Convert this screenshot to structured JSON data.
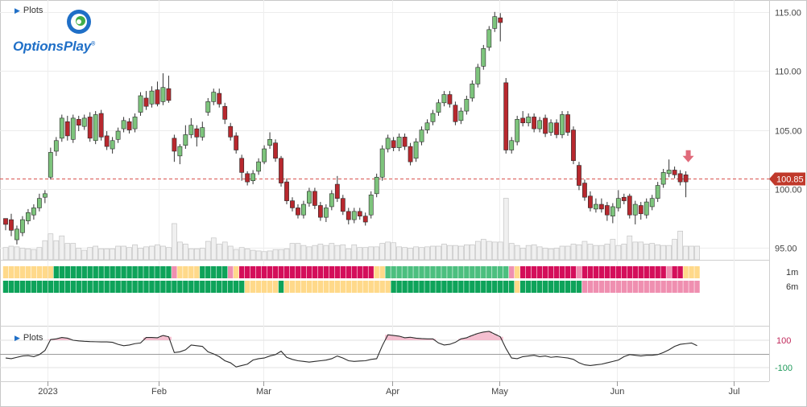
{
  "brand": {
    "name": "OptionsPlay",
    "mark": "®"
  },
  "plots_label": "Plots",
  "colors": {
    "up": "#7dc47c",
    "down": "#b8282e",
    "accent": "#1f6fc7",
    "current_price_bg": "#c0392b",
    "strong_green": "#0ea35a",
    "light_green": "#4cbf7f",
    "yellow": "#ffd98a",
    "pink": "#ef8fb0",
    "red": "#d40e5a"
  },
  "chart_data": {
    "type": "candlestick",
    "ylim": [
      94.0,
      115.6
    ],
    "y_ticks": [
      "115.00",
      "110.00",
      "105.00",
      "100.00",
      "95.00"
    ],
    "x_labels": [
      "2023",
      "Feb",
      "Mar",
      "Apr",
      "May",
      "Jun",
      "Jul"
    ],
    "current_price": "100.85",
    "candles": [
      [
        97.5,
        97.0,
        97.2,
        96.5
      ],
      [
        97.4,
        96.5,
        97.9,
        96.0
      ],
      [
        95.7,
        96.6,
        96.9,
        95.3
      ],
      [
        96.3,
        97.4,
        97.7,
        96.0
      ],
      [
        97.3,
        98.0,
        98.3,
        97.0
      ],
      [
        97.8,
        98.4,
        98.7,
        97.4
      ],
      [
        98.4,
        99.2,
        99.6,
        98.1
      ],
      [
        99.3,
        99.6,
        99.9,
        98.8
      ],
      [
        101.0,
        103.1,
        103.5,
        100.8
      ],
      [
        103.2,
        104.1,
        104.4,
        102.8
      ],
      [
        104.3,
        106.0,
        106.3,
        104.0
      ],
      [
        105.7,
        104.5,
        106.2,
        104.1
      ],
      [
        104.2,
        106.0,
        106.3,
        103.9
      ],
      [
        105.9,
        105.4,
        106.2,
        104.9
      ],
      [
        105.3,
        106.0,
        106.3,
        105.0
      ],
      [
        106.1,
        104.3,
        106.5,
        104.0
      ],
      [
        104.1,
        106.3,
        106.6,
        103.8
      ],
      [
        106.4,
        104.4,
        106.7,
        104.1
      ],
      [
        104.5,
        103.6,
        104.9,
        103.3
      ],
      [
        103.4,
        104.1,
        104.4,
        103.0
      ],
      [
        104.2,
        104.9,
        105.2,
        103.9
      ],
      [
        105.1,
        105.8,
        106.1,
        104.8
      ],
      [
        105.7,
        105.0,
        106.0,
        104.7
      ],
      [
        105.1,
        106.1,
        106.4,
        104.8
      ],
      [
        106.5,
        107.9,
        108.2,
        106.2
      ],
      [
        107.7,
        107.0,
        108.3,
        106.7
      ],
      [
        107.2,
        108.3,
        108.7,
        106.9
      ],
      [
        108.4,
        107.2,
        109.1,
        107.0
      ],
      [
        107.4,
        108.6,
        109.8,
        107.1
      ],
      [
        108.5,
        107.5,
        109.6,
        107.3
      ],
      [
        104.3,
        103.2,
        104.6,
        102.3
      ],
      [
        102.8,
        103.6,
        103.8,
        102.1
      ],
      [
        103.7,
        104.6,
        105.4,
        103.4
      ],
      [
        104.6,
        105.4,
        106.0,
        104.3
      ],
      [
        105.1,
        104.4,
        105.4,
        103.6
      ],
      [
        104.4,
        105.2,
        105.7,
        104.1
      ],
      [
        106.5,
        107.4,
        107.7,
        106.2
      ],
      [
        107.4,
        108.2,
        108.5,
        107.1
      ],
      [
        108.1,
        107.2,
        108.5,
        106.9
      ],
      [
        107.0,
        105.9,
        107.3,
        105.5
      ],
      [
        105.3,
        104.4,
        105.6,
        104.1
      ],
      [
        104.5,
        103.3,
        104.8,
        103.0
      ],
      [
        102.6,
        101.4,
        102.9,
        100.7
      ],
      [
        101.3,
        100.6,
        101.5,
        100.3
      ],
      [
        100.7,
        101.3,
        101.6,
        100.4
      ],
      [
        101.5,
        102.3,
        102.6,
        101.2
      ],
      [
        102.3,
        103.4,
        103.7,
        102.1
      ],
      [
        103.7,
        104.2,
        104.8,
        103.4
      ],
      [
        103.9,
        102.6,
        104.2,
        102.3
      ],
      [
        102.6,
        100.5,
        102.8,
        100.2
      ],
      [
        100.6,
        99.0,
        100.9,
        98.7
      ],
      [
        99.0,
        98.4,
        99.3,
        98.1
      ],
      [
        98.4,
        97.8,
        98.7,
        97.5
      ],
      [
        97.8,
        98.7,
        99.0,
        97.5
      ],
      [
        98.8,
        99.8,
        100.1,
        98.5
      ],
      [
        99.8,
        98.6,
        100.1,
        98.3
      ],
      [
        98.6,
        97.6,
        98.9,
        97.3
      ],
      [
        97.6,
        98.4,
        98.7,
        97.2
      ],
      [
        98.5,
        99.6,
        99.9,
        98.2
      ],
      [
        100.4,
        99.2,
        101.1,
        98.9
      ],
      [
        99.2,
        98.1,
        99.5,
        97.8
      ],
      [
        98.1,
        97.4,
        98.4,
        97.0
      ],
      [
        97.4,
        98.1,
        98.4,
        97.1
      ],
      [
        98.1,
        97.7,
        98.4,
        97.4
      ],
      [
        97.7,
        97.2,
        98.0,
        96.9
      ],
      [
        97.8,
        99.5,
        99.8,
        97.5
      ],
      [
        99.6,
        101.0,
        101.3,
        99.3
      ],
      [
        101.0,
        103.4,
        103.7,
        100.7
      ],
      [
        103.4,
        104.3,
        104.6,
        103.1
      ],
      [
        104.1,
        103.5,
        104.4,
        103.2
      ],
      [
        103.5,
        104.4,
        104.7,
        103.2
      ],
      [
        104.4,
        103.6,
        104.7,
        103.3
      ],
      [
        103.6,
        102.3,
        103.9,
        102.0
      ],
      [
        102.6,
        104.0,
        104.3,
        102.3
      ],
      [
        104.0,
        105.0,
        105.3,
        103.7
      ],
      [
        105.0,
        105.6,
        105.9,
        104.7
      ],
      [
        105.7,
        106.4,
        106.7,
        105.4
      ],
      [
        106.5,
        107.3,
        107.6,
        106.2
      ],
      [
        107.3,
        108.0,
        108.3,
        107.0
      ],
      [
        108.0,
        107.2,
        108.3,
        106.9
      ],
      [
        107.1,
        105.7,
        107.4,
        105.4
      ],
      [
        105.8,
        106.6,
        106.9,
        105.5
      ],
      [
        106.6,
        107.6,
        107.9,
        106.3
      ],
      [
        107.7,
        108.9,
        109.2,
        107.4
      ],
      [
        108.9,
        110.3,
        110.6,
        108.6
      ],
      [
        110.4,
        111.9,
        112.2,
        110.1
      ],
      [
        112.0,
        113.5,
        113.8,
        111.7
      ],
      [
        113.6,
        114.6,
        115.0,
        113.3
      ],
      [
        114.5,
        114.1,
        114.9,
        112.5
      ],
      [
        109.0,
        103.3,
        109.4,
        103.0
      ],
      [
        103.3,
        104.1,
        104.4,
        103.0
      ],
      [
        104.0,
        105.9,
        106.2,
        103.7
      ],
      [
        106.0,
        105.6,
        106.6,
        105.3
      ],
      [
        105.6,
        106.1,
        106.4,
        105.3
      ],
      [
        106.1,
        105.1,
        106.4,
        104.8
      ],
      [
        105.1,
        105.8,
        106.1,
        104.8
      ],
      [
        106.0,
        104.7,
        106.3,
        104.4
      ],
      [
        104.8,
        105.6,
        105.9,
        104.5
      ],
      [
        105.6,
        104.6,
        105.9,
        104.3
      ],
      [
        104.6,
        106.3,
        106.6,
        104.3
      ],
      [
        106.3,
        104.8,
        106.6,
        104.5
      ],
      [
        105.0,
        102.4,
        105.3,
        102.1
      ],
      [
        102.0,
        100.3,
        102.3,
        99.9
      ],
      [
        100.5,
        99.3,
        100.8,
        99.0
      ],
      [
        99.4,
        98.4,
        99.8,
        98.1
      ],
      [
        98.3,
        98.7,
        99.2,
        98.0
      ],
      [
        98.7,
        98.3,
        99.2,
        98.0
      ],
      [
        98.6,
        97.8,
        98.9,
        97.3
      ],
      [
        97.7,
        98.5,
        98.8,
        97.1
      ],
      [
        98.4,
        99.2,
        99.9,
        98.1
      ],
      [
        99.3,
        99.0,
        99.6,
        98.7
      ],
      [
        99.4,
        97.8,
        99.6,
        97.5
      ],
      [
        97.8,
        98.7,
        99.0,
        97.0
      ],
      [
        98.6,
        97.9,
        98.9,
        97.4
      ],
      [
        97.8,
        98.9,
        99.2,
        97.5
      ],
      [
        98.5,
        99.2,
        99.5,
        98.2
      ],
      [
        99.2,
        100.3,
        100.6,
        98.9
      ],
      [
        100.4,
        101.4,
        101.7,
        100.1
      ],
      [
        101.3,
        101.6,
        102.5,
        101.0
      ],
      [
        101.6,
        101.2,
        101.9,
        100.9
      ],
      [
        101.3,
        100.6,
        101.6,
        100.3
      ],
      [
        101.2,
        100.6,
        101.5,
        99.3
      ]
    ],
    "volume": [
      0.18,
      0.2,
      0.19,
      0.17,
      0.16,
      0.15,
      0.18,
      0.28,
      0.38,
      0.28,
      0.35,
      0.24,
      0.24,
      0.17,
      0.14,
      0.18,
      0.2,
      0.16,
      0.16,
      0.16,
      0.2,
      0.2,
      0.18,
      0.22,
      0.17,
      0.19,
      0.2,
      0.22,
      0.2,
      0.18,
      0.53,
      0.26,
      0.23,
      0.16,
      0.16,
      0.17,
      0.27,
      0.32,
      0.23,
      0.26,
      0.2,
      0.15,
      0.18,
      0.16,
      0.14,
      0.13,
      0.12,
      0.13,
      0.15,
      0.15,
      0.16,
      0.24,
      0.24,
      0.21,
      0.19,
      0.21,
      0.23,
      0.21,
      0.24,
      0.21,
      0.22,
      0.16,
      0.22,
      0.18,
      0.18,
      0.19,
      0.19,
      0.24,
      0.26,
      0.25,
      0.19,
      0.18,
      0.17,
      0.19,
      0.18,
      0.19,
      0.2,
      0.2,
      0.23,
      0.21,
      0.21,
      0.2,
      0.22,
      0.22,
      0.27,
      0.3,
      0.27,
      0.26,
      0.26,
      0.9,
      0.24,
      0.21,
      0.17,
      0.21,
      0.22,
      0.19,
      0.17,
      0.16,
      0.17,
      0.2,
      0.2,
      0.23,
      0.22,
      0.27,
      0.23,
      0.21,
      0.21,
      0.23,
      0.3,
      0.21,
      0.23,
      0.35,
      0.26,
      0.26,
      0.23,
      0.24,
      0.22,
      0.21,
      0.21,
      0.3,
      0.42,
      0.2,
      0.2,
      0.2
    ],
    "strip_1m": [
      "Y",
      "Y",
      "Y",
      "Y",
      "Y",
      "Y",
      "Y",
      "Y",
      "Y",
      "G",
      "G",
      "G",
      "G",
      "G",
      "G",
      "G",
      "G",
      "G",
      "G",
      "G",
      "G",
      "G",
      "G",
      "G",
      "G",
      "G",
      "G",
      "G",
      "G",
      "G",
      "P",
      "Y",
      "Y",
      "Y",
      "Y",
      "G",
      "G",
      "G",
      "G",
      "G",
      "P",
      "Y",
      "R",
      "R",
      "R",
      "R",
      "R",
      "R",
      "R",
      "R",
      "R",
      "R",
      "R",
      "R",
      "R",
      "R",
      "R",
      "R",
      "R",
      "R",
      "R",
      "R",
      "R",
      "R",
      "R",
      "R",
      "Y",
      "Y",
      "L",
      "L",
      "L",
      "L",
      "L",
      "L",
      "L",
      "L",
      "L",
      "L",
      "L",
      "L",
      "L",
      "L",
      "L",
      "L",
      "L",
      "L",
      "L",
      "L",
      "L",
      "L",
      "P",
      "Y",
      "R",
      "R",
      "R",
      "R",
      "R",
      "R",
      "R",
      "R",
      "R",
      "R",
      "P",
      "R",
      "R",
      "R",
      "R",
      "R",
      "R",
      "R",
      "R",
      "R",
      "R",
      "R",
      "R",
      "R",
      "R",
      "R",
      "P",
      "R",
      "R",
      "Y",
      "Y",
      "Y"
    ],
    "strip_6m": [
      "G",
      "G",
      "G",
      "G",
      "G",
      "G",
      "G",
      "G",
      "G",
      "G",
      "G",
      "G",
      "G",
      "G",
      "G",
      "G",
      "G",
      "G",
      "G",
      "G",
      "G",
      "G",
      "G",
      "G",
      "G",
      "G",
      "G",
      "G",
      "G",
      "G",
      "G",
      "G",
      "G",
      "G",
      "G",
      "G",
      "G",
      "G",
      "G",
      "G",
      "G",
      "G",
      "G",
      "Y",
      "Y",
      "Y",
      "Y",
      "Y",
      "Y",
      "G",
      "Y",
      "Y",
      "Y",
      "Y",
      "Y",
      "Y",
      "Y",
      "Y",
      "Y",
      "Y",
      "Y",
      "Y",
      "Y",
      "Y",
      "Y",
      "Y",
      "Y",
      "Y",
      "Y",
      "G",
      "G",
      "G",
      "G",
      "G",
      "G",
      "G",
      "G",
      "G",
      "G",
      "G",
      "G",
      "G",
      "G",
      "G",
      "G",
      "G",
      "G",
      "G",
      "G",
      "G",
      "G",
      "Y",
      "G",
      "G",
      "G",
      "G",
      "G",
      "G",
      "G",
      "G",
      "G",
      "G",
      "G",
      "P",
      "P",
      "P",
      "P",
      "P",
      "P",
      "P",
      "P",
      "P",
      "P",
      "P",
      "P",
      "P",
      "P",
      "P",
      "P",
      "P",
      "P",
      "P",
      "P",
      "P"
    ],
    "strip_labels": [
      "1m",
      "6m"
    ],
    "oscillator": {
      "ylim": [
        -200,
        200
      ],
      "ticks": [
        "100",
        "-100"
      ],
      "values": [
        -30,
        -35,
        -25,
        -15,
        -12,
        -20,
        -5,
        25,
        105,
        110,
        120,
        115,
        100,
        95,
        92,
        90,
        89,
        88,
        88,
        85,
        70,
        60,
        65,
        75,
        80,
        120,
        120,
        118,
        135,
        125,
        10,
        15,
        30,
        65,
        60,
        55,
        15,
        0,
        -20,
        -50,
        -65,
        -95,
        -85,
        -75,
        -45,
        -35,
        -30,
        -15,
        -5,
        20,
        -25,
        -40,
        -50,
        -55,
        -60,
        -55,
        -50,
        -45,
        -35,
        -15,
        -30,
        -50,
        -55,
        -52,
        -50,
        -40,
        -35,
        60,
        140,
        135,
        130,
        118,
        122,
        115,
        112,
        110,
        110,
        80,
        65,
        70,
        85,
        110,
        118,
        135,
        150,
        160,
        165,
        145,
        125,
        40,
        -30,
        -35,
        -20,
        -15,
        -10,
        -20,
        -15,
        -25,
        -20,
        -25,
        -30,
        -40,
        -65,
        -80,
        -85,
        -80,
        -75,
        -65,
        -55,
        -45,
        -20,
        -5,
        -10,
        -15,
        -10,
        -10,
        -5,
        10,
        30,
        55,
        70,
        75,
        80,
        60
      ]
    }
  }
}
